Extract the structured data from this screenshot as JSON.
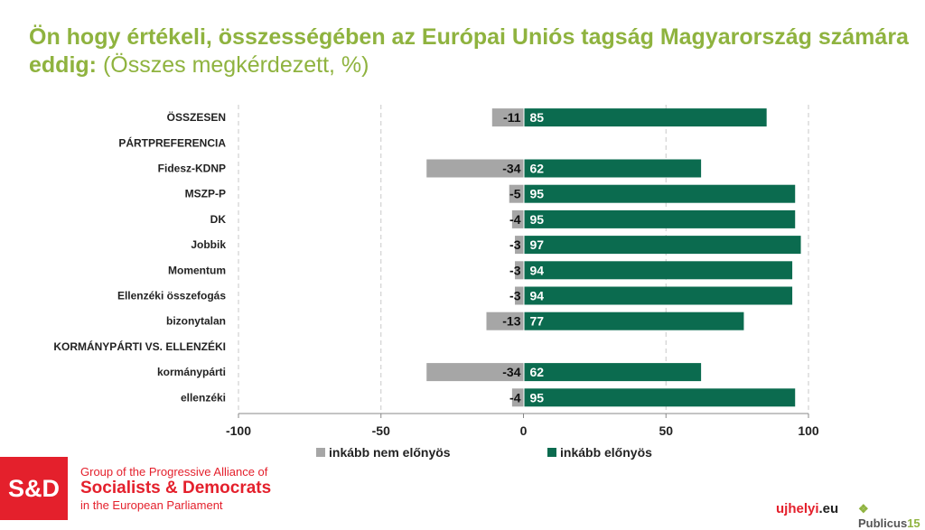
{
  "title": {
    "main": "Ön hogy értékeli, összességében az Európai Uniós tagság Magyarország számára eddig:",
    "sub": "(Összes megkérdezett, %)"
  },
  "chart_data": {
    "type": "bar",
    "orientation": "horizontal-diverging",
    "categories": [
      "ÖSSZESEN",
      "PÁRTPREFERENCIA",
      "Fidesz-KDNP",
      "MSZP-P",
      "DK",
      "Jobbik",
      "Momentum",
      "Ellenzéki összefogás",
      "bizonytalan",
      "KORMÁNYPÁRTI VS. ELLENZÉKI",
      "kormánypárti",
      "ellenzéki"
    ],
    "series": [
      {
        "name": "inkább nem előnyös",
        "color": "#a6a6a6",
        "values": [
          -11,
          null,
          -34,
          -5,
          -4,
          -3,
          -3,
          -3,
          -13,
          null,
          -34,
          -4
        ]
      },
      {
        "name": "inkább előnyös",
        "color": "#0b6b4f",
        "values": [
          85,
          null,
          62,
          95,
          95,
          97,
          94,
          94,
          77,
          null,
          62,
          95
        ]
      }
    ],
    "xlim": [
      -100,
      100
    ],
    "xticks": [
      -100,
      -50,
      0,
      50,
      100
    ],
    "grid": true,
    "legend": "bottom"
  },
  "footer": {
    "logo": "S&D",
    "line1": "Group of the Progressive Alliance of",
    "line2": "Socialists & Democrats",
    "line3": "in the European Parliament",
    "ujhelyi_a": "ujhelyi",
    "ujhelyi_b": ".eu",
    "publicus_a": "Publicus",
    "publicus_b": "15"
  }
}
